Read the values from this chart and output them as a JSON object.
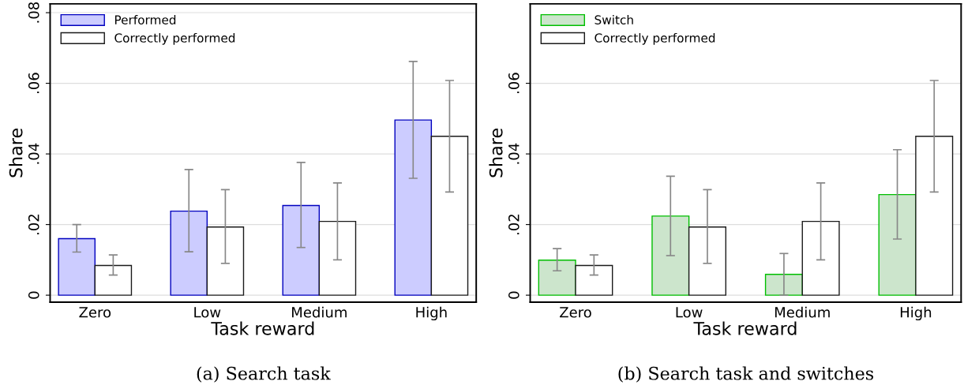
{
  "chart_data": [
    {
      "type": "bar",
      "categories": [
        "Zero",
        "Low",
        "Medium",
        "High"
      ],
      "xlabel": "Task reward",
      "ylabel": "Share",
      "ylim": [
        -0.002,
        0.0825
      ],
      "yticks": [
        {
          "value": 0,
          "label": "0"
        },
        {
          "value": 0.02,
          "label": ".02"
        },
        {
          "value": 0.04,
          "label": ".04"
        },
        {
          "value": 0.06,
          "label": ".06"
        },
        {
          "value": 0.08,
          "label": ".08"
        }
      ],
      "grid": "y",
      "legend": "top left",
      "annotations": [
        "(a) Search task"
      ],
      "series": [
        {
          "name": "Performed",
          "color": "#ccccff",
          "values": [
            0.016,
            0.0238,
            0.0254,
            0.0496
          ],
          "errors": [
            [
              0.0122,
              0.02
            ],
            [
              0.0123,
              0.0356
            ],
            [
              0.0135,
              0.0376
            ],
            [
              0.0331,
              0.0662
            ]
          ]
        },
        {
          "name": "Correctly performed",
          "color": "#ffffff",
          "values": [
            0.0084,
            0.0193,
            0.0209,
            0.045
          ],
          "errors": [
            [
              0.0057,
              0.0114
            ],
            [
              0.009,
              0.0299
            ],
            [
              0.01,
              0.0318
            ],
            [
              0.0292,
              0.0608
            ]
          ]
        }
      ]
    },
    {
      "type": "bar",
      "categories": [
        "Zero",
        "Low",
        "Medium",
        "High"
      ],
      "xlabel": "Task reward",
      "ylabel": "Share",
      "ylim": [
        -0.002,
        0.0825
      ],
      "yticks": [
        {
          "value": 0,
          "label": "0"
        },
        {
          "value": 0.02,
          "label": ".02"
        },
        {
          "value": 0.04,
          "label": ".04"
        },
        {
          "value": 0.06,
          "label": ".06"
        }
      ],
      "grid": "y",
      "legend": "top left",
      "annotations": [
        "(b) Search task and switches"
      ],
      "series": [
        {
          "name": "Switch",
          "color": "#cce5cc",
          "values": [
            0.0099,
            0.0224,
            0.0059,
            0.0285
          ],
          "errors": [
            [
              0.0069,
              0.0132
            ],
            [
              0.0112,
              0.0337
            ],
            [
              0.0,
              0.0118
            ],
            [
              0.0159,
              0.0412
            ]
          ]
        },
        {
          "name": "Correctly performed",
          "color": "#ffffff",
          "values": [
            0.0084,
            0.0193,
            0.0209,
            0.045
          ],
          "errors": [
            [
              0.0057,
              0.0114
            ],
            [
              0.009,
              0.0299
            ],
            [
              0.01,
              0.0318
            ],
            [
              0.0292,
              0.0608
            ]
          ]
        }
      ]
    }
  ]
}
